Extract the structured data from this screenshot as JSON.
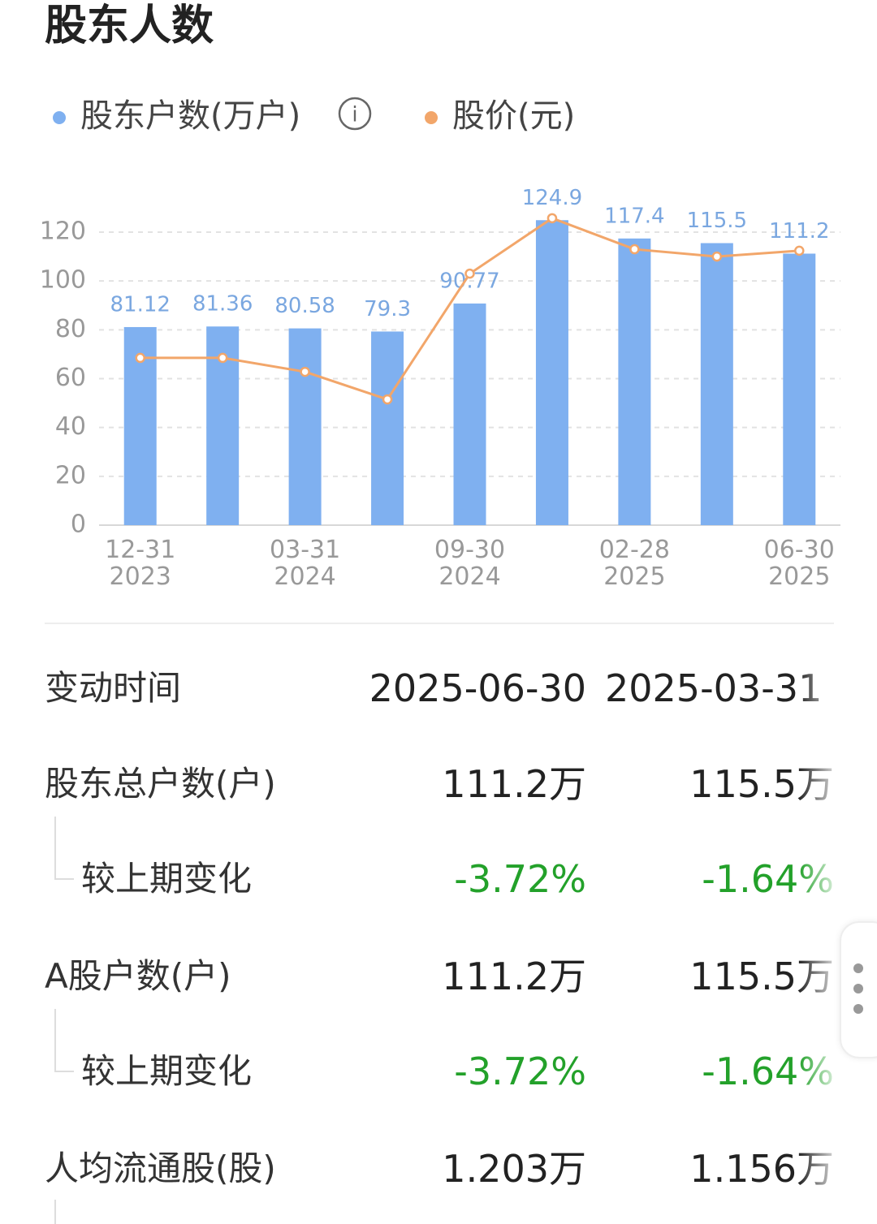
{
  "title": "股东人数",
  "chart_data": {
    "type": "bar",
    "categories": [
      "12-31\n2023",
      null,
      "03-31\n2024",
      null,
      "09-30\n2024",
      null,
      "02-28\n2025",
      null,
      "06-30\n2025"
    ],
    "series": [
      {
        "name": "股东户数(万户)",
        "color": "#7fb0f0",
        "type": "bar",
        "values": [
          81.12,
          81.36,
          80.58,
          79.3,
          90.77,
          124.9,
          117.4,
          115.5,
          111.2
        ]
      },
      {
        "name": "股价(元)",
        "color": "#f2a66a",
        "type": "line",
        "values": [
          68.5,
          68.5,
          62.8,
          51.5,
          103,
          125.7,
          113,
          110,
          112.4
        ]
      }
    ],
    "ylim": [
      0,
      120
    ],
    "yticks": [
      0,
      20,
      40,
      60,
      80,
      100,
      120
    ],
    "grid": true
  },
  "table": {
    "header": {
      "label": "变动时间",
      "values": [
        "2025-06-30",
        "2025-03-31"
      ]
    },
    "rows": [
      {
        "label": "股东总户数(户)",
        "values": [
          "111.2万",
          "115.5万"
        ]
      },
      {
        "label": "较上期变化",
        "values": [
          "-3.72%",
          "-1.64%"
        ]
      },
      {
        "label": "A股户数(户)",
        "values": [
          "111.2万",
          "115.5万"
        ]
      },
      {
        "label": "较上期变化",
        "values": [
          "-3.72%",
          "-1.64%"
        ]
      },
      {
        "label": "人均流通股(股)",
        "values": [
          "1.203万",
          "1.156万"
        ]
      }
    ]
  }
}
